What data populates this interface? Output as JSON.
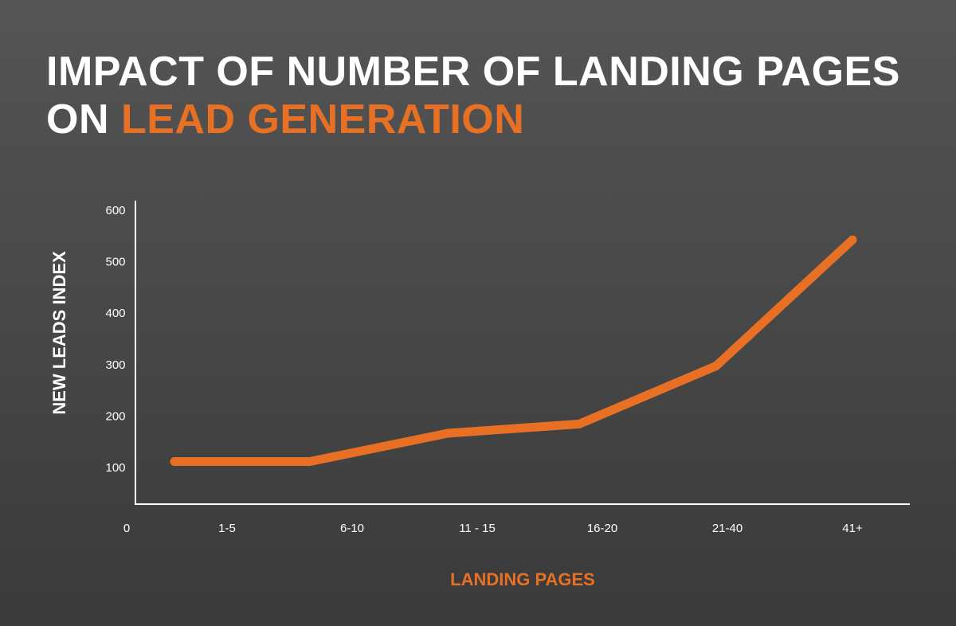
{
  "title": {
    "line1": "IMPACT OF NUMBER OF LANDING PAGES",
    "line2_prefix": "ON ",
    "line2_accent": "LEAD GENERATION"
  },
  "colors": {
    "background_top": "#555555",
    "background_bottom": "#3a3a3a",
    "text": "#ffffff",
    "accent": "#e87025"
  },
  "chart_data": {
    "type": "line",
    "title": "IMPACT OF NUMBER OF LANDING PAGES ON LEAD GENERATION",
    "xlabel": "LANDING PAGES",
    "ylabel": "NEW LEADS INDEX",
    "x_origin_label": "0",
    "categories": [
      "1-5",
      "6-10",
      "11 - 15",
      "16-20",
      "21-40",
      "41+"
    ],
    "y_ticks": [
      100,
      200,
      300,
      400,
      500,
      600
    ],
    "ylim": [
      0,
      620
    ],
    "series": [
      {
        "values": [
          110,
          110,
          165,
          183,
          296,
          541
        ]
      }
    ],
    "grid": false,
    "legend": "none"
  }
}
